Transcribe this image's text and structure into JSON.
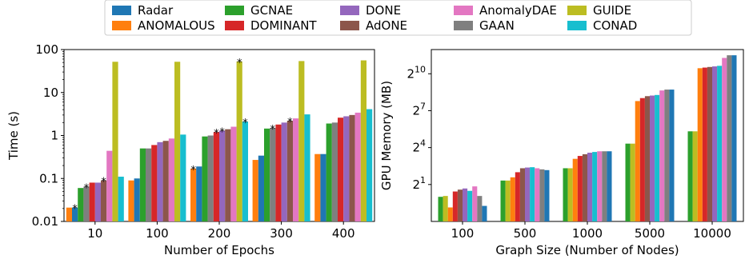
{
  "legend": {
    "placement": "top-center",
    "entries": [
      {
        "name": "Radar",
        "color": "#1f77b4"
      },
      {
        "name": "ANOMALOUS",
        "color": "#ff7f0e"
      },
      {
        "name": "GCNAE",
        "color": "#2ca02c"
      },
      {
        "name": "DOMINANT",
        "color": "#d62728"
      },
      {
        "name": "DONE",
        "color": "#9467bd"
      },
      {
        "name": "AdONE",
        "color": "#8c564b"
      },
      {
        "name": "AnomalyDAE",
        "color": "#e377c2"
      },
      {
        "name": "GAAN",
        "color": "#7f7f7f"
      },
      {
        "name": "GUIDE",
        "color": "#bcbd22"
      },
      {
        "name": "CONAD",
        "color": "#17becf"
      }
    ]
  },
  "chart_data": [
    {
      "type": "bar",
      "scale_y": "log10",
      "xlabel": "Number of Epochs",
      "ylabel": "Time (s)",
      "ylim": [
        0.01,
        100
      ],
      "yticks": [
        "0.01",
        "0.1",
        "1",
        "10",
        "100"
      ],
      "categories": [
        "10",
        "100",
        "200",
        "300",
        "400"
      ],
      "series_order": [
        "ANOMALOUS",
        "Radar",
        "GCNAE",
        "GAAN",
        "DOMINANT",
        "DONE",
        "AdONE",
        "AnomalyDAE",
        "GUIDE",
        "CONAD"
      ],
      "series": [
        {
          "name": "ANOMALOUS",
          "values": [
            0.021,
            0.09,
            0.17,
            0.27,
            0.37
          ]
        },
        {
          "name": "Radar",
          "values": [
            0.021,
            0.1,
            0.19,
            0.34,
            0.37
          ]
        },
        {
          "name": "GCNAE",
          "values": [
            0.06,
            0.5,
            0.95,
            1.45,
            1.9
          ]
        },
        {
          "name": "GAAN",
          "values": [
            0.065,
            0.5,
            1.0,
            1.5,
            2.0
          ]
        },
        {
          "name": "DOMINANT",
          "values": [
            0.08,
            0.6,
            1.2,
            1.8,
            2.6
          ]
        },
        {
          "name": "DONE",
          "values": [
            0.08,
            0.7,
            1.3,
            2.0,
            2.8
          ]
        },
        {
          "name": "AdONE",
          "values": [
            0.09,
            0.75,
            1.4,
            2.2,
            3.0
          ]
        },
        {
          "name": "AnomalyDAE",
          "values": [
            0.44,
            0.85,
            1.6,
            2.5,
            3.4
          ]
        },
        {
          "name": "GUIDE",
          "values": [
            52,
            52,
            53,
            54,
            56
          ]
        },
        {
          "name": "CONAD",
          "values": [
            0.11,
            1.05,
            2.1,
            3.1,
            4.1
          ]
        }
      ],
      "annotations": [
        {
          "text": "*",
          "category": "10",
          "series": "Radar"
        },
        {
          "text": "*",
          "category": "10",
          "series": "GAAN"
        },
        {
          "text": "*",
          "category": "10",
          "series": "AdONE"
        },
        {
          "text": "*",
          "category": "200",
          "series": "ANOMALOUS"
        },
        {
          "text": "*",
          "category": "200",
          "series": "DOMINANT"
        },
        {
          "text": "*",
          "category": "200",
          "series": "DONE"
        },
        {
          "text": "*",
          "category": "200",
          "series": "CONAD"
        },
        {
          "text": "*",
          "category": "200",
          "series": "GUIDE"
        },
        {
          "text": "*",
          "category": "300",
          "series": "GAAN"
        },
        {
          "text": "*",
          "category": "300",
          "series": "AdONE"
        }
      ]
    },
    {
      "type": "bar",
      "scale_y": "log2",
      "xlabel": "Graph Size (Number of Nodes)",
      "ylabel": "GPU Memory (MB)",
      "ylim": [
        0.25,
        4000
      ],
      "yticks": [
        {
          "base": "2",
          "exp": "1"
        },
        {
          "base": "2",
          "exp": "4"
        },
        {
          "base": "2",
          "exp": "7"
        },
        {
          "base": "2",
          "exp": "10"
        }
      ],
      "categories": [
        "100",
        "500",
        "1000",
        "5000",
        "10000"
      ],
      "series_order": [
        "GCNAE",
        "GUIDE",
        "ANOMALOUS",
        "DOMINANT",
        "AdONE",
        "DONE",
        "CONAD",
        "AnomalyDAE",
        "GAAN",
        "Radar"
      ],
      "series": [
        {
          "name": "GCNAE",
          "values": [
            1.0,
            2.5,
            5.0,
            20,
            40
          ]
        },
        {
          "name": "GUIDE",
          "values": [
            1.05,
            2.5,
            5.0,
            20,
            40
          ]
        },
        {
          "name": "ANOMALOUS",
          "values": [
            0.55,
            3.0,
            8.5,
            220,
            1400
          ]
        },
        {
          "name": "DOMINANT",
          "values": [
            1.35,
            4.0,
            10,
            260,
            1450
          ]
        },
        {
          "name": "AdONE",
          "values": [
            1.5,
            5.0,
            11,
            290,
            1500
          ]
        },
        {
          "name": "DONE",
          "values": [
            1.6,
            5.2,
            12,
            300,
            1550
          ]
        },
        {
          "name": "CONAD",
          "values": [
            1.4,
            5.3,
            12.5,
            310,
            1600
          ]
        },
        {
          "name": "AnomalyDAE",
          "values": [
            1.8,
            5.0,
            13,
            400,
            2500
          ]
        },
        {
          "name": "GAAN",
          "values": [
            1.05,
            4.7,
            13,
            420,
            2900
          ]
        },
        {
          "name": "Radar",
          "values": [
            0.6,
            4.5,
            13,
            420,
            2900
          ]
        }
      ]
    }
  ]
}
